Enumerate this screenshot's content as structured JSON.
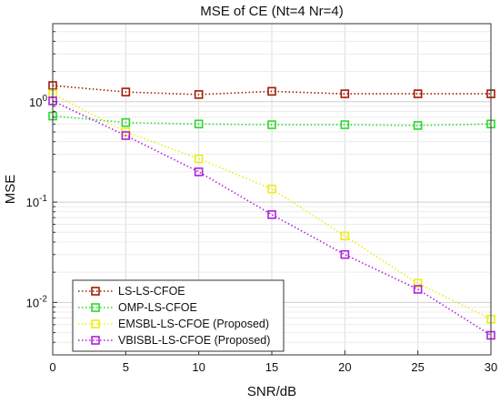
{
  "chart_data": {
    "type": "line",
    "title": "MSE of CE (Nt=4 Nr=4)",
    "xlabel": "SNR/dB",
    "ylabel": "MSE",
    "xlim": [
      0,
      30
    ],
    "ylim": [
      0.003,
      6
    ],
    "yscale": "log",
    "grid": true,
    "legend_position": "bottom-left",
    "x": [
      0,
      5,
      10,
      15,
      20,
      25,
      30
    ],
    "xticks": [
      "0",
      "5",
      "10",
      "15",
      "20",
      "25",
      "30"
    ],
    "yticks": [
      {
        "value": 1,
        "base": "10",
        "exp": "0"
      },
      {
        "value": 0.1,
        "base": "10",
        "exp": "-1"
      },
      {
        "value": 0.01,
        "base": "10",
        "exp": "-2"
      }
    ],
    "series": [
      {
        "name": "LS-LS-CFOE",
        "color": "#a31c00",
        "marker": "square",
        "linestyle": "dotted",
        "values": [
          1.45,
          1.25,
          1.18,
          1.27,
          1.2,
          1.2,
          1.2
        ]
      },
      {
        "name": "OMP-LS-CFOE",
        "color": "#2bd92b",
        "marker": "square",
        "linestyle": "dotted",
        "values": [
          0.72,
          0.62,
          0.6,
          0.59,
          0.59,
          0.58,
          0.6
        ]
      },
      {
        "name": "EMSBL-LS-CFOE (Proposed)",
        "color": "#eded1a",
        "marker": "square",
        "linestyle": "dotted",
        "values": [
          1.2,
          0.5,
          0.27,
          0.135,
          0.046,
          0.0155,
          0.0068
        ]
      },
      {
        "name": "VBISBL-LS-CFOE (Proposed)",
        "color": "#b020e0",
        "marker": "square",
        "linestyle": "dotted",
        "values": [
          1.02,
          0.46,
          0.2,
          0.075,
          0.03,
          0.0135,
          0.0047
        ]
      }
    ]
  }
}
